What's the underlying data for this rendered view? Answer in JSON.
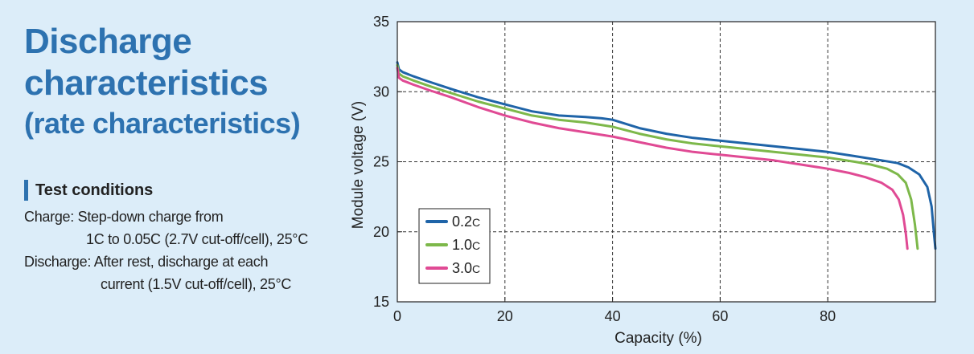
{
  "heading": {
    "line1": "Discharge",
    "line2": "characteristics",
    "line3": "(rate characteristics)"
  },
  "test_conditions": {
    "title": "Test conditions",
    "charge_label": "Charge:",
    "charge_line1": "Step-down charge from",
    "charge_line2": "1C to 0.05C (2.7V cut-off/cell), 25°C",
    "discharge_label": "Discharge:",
    "discharge_line1": "After rest, discharge at each",
    "discharge_line2": "current (1.5V cut-off/cell), 25°C"
  },
  "colors": {
    "background": "#dcedf9",
    "title": "#2d72b0",
    "series_0_2c": "#1f64a8",
    "series_1_0c": "#7db84a",
    "series_3_0c": "#e04a94"
  },
  "chart_data": {
    "type": "line",
    "xlabel": "Capacity (%)",
    "ylabel": "Module voltage (V)",
    "xlim": [
      0,
      100
    ],
    "ylim": [
      15,
      35
    ],
    "xticks": [
      0,
      20,
      40,
      60,
      80
    ],
    "yticks": [
      15,
      20,
      25,
      30,
      35
    ],
    "grid": "dashed",
    "legend_position": "bottom-left",
    "series": [
      {
        "name": "0.2",
        "unit": "C",
        "color": "#1f64a8",
        "x": [
          0,
          0.3,
          1,
          3,
          6,
          10,
          15,
          20,
          25,
          30,
          35,
          38,
          40,
          45,
          50,
          55,
          60,
          65,
          70,
          75,
          80,
          85,
          90,
          93,
          95,
          97,
          98.5,
          99.3,
          99.7,
          100
        ],
        "y": [
          32.1,
          31.6,
          31.4,
          31.1,
          30.7,
          30.2,
          29.6,
          29.1,
          28.6,
          28.3,
          28.2,
          28.1,
          28.0,
          27.4,
          27.0,
          26.7,
          26.5,
          26.3,
          26.1,
          25.9,
          25.7,
          25.4,
          25.1,
          24.9,
          24.6,
          24.1,
          23.2,
          21.8,
          20.0,
          18.8
        ]
      },
      {
        "name": "1.0",
        "unit": "C",
        "color": "#7db84a",
        "x": [
          0,
          0.3,
          1,
          3,
          6,
          10,
          15,
          20,
          25,
          30,
          35,
          40,
          45,
          50,
          55,
          60,
          65,
          70,
          75,
          80,
          85,
          88,
          91,
          93,
          94.5,
          95.5,
          96.2,
          96.7
        ],
        "y": [
          31.9,
          31.3,
          31.1,
          30.8,
          30.4,
          29.9,
          29.3,
          28.8,
          28.3,
          28.0,
          27.8,
          27.5,
          27.0,
          26.6,
          26.3,
          26.1,
          25.9,
          25.7,
          25.5,
          25.3,
          25.0,
          24.8,
          24.5,
          24.1,
          23.5,
          22.3,
          20.5,
          18.8
        ]
      },
      {
        "name": "3.0",
        "unit": "C",
        "color": "#e04a94",
        "x": [
          0,
          0.3,
          1,
          3,
          6,
          10,
          15,
          20,
          25,
          30,
          35,
          40,
          45,
          50,
          55,
          60,
          65,
          70,
          75,
          80,
          84,
          87,
          90,
          92,
          93.2,
          94,
          94.5,
          94.8
        ],
        "y": [
          31.7,
          31.0,
          30.8,
          30.5,
          30.1,
          29.6,
          28.9,
          28.3,
          27.8,
          27.4,
          27.1,
          26.8,
          26.4,
          26.0,
          25.7,
          25.5,
          25.3,
          25.1,
          24.8,
          24.5,
          24.2,
          23.9,
          23.5,
          23.0,
          22.3,
          21.2,
          19.9,
          18.8
        ]
      }
    ]
  }
}
